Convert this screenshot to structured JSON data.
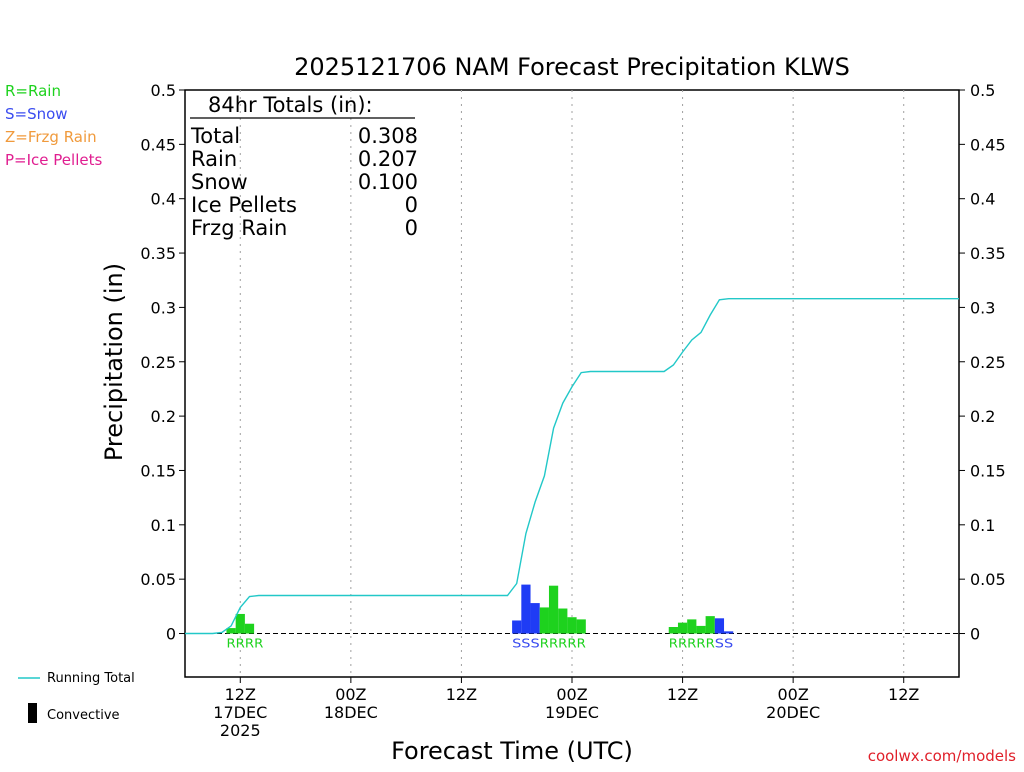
{
  "chart_data": {
    "type": "bar",
    "title": "2025121706 NAM Forecast Precipitation KLWS",
    "xlabel": "Forecast Time (UTC)",
    "ylabel": "Precipitation (in)",
    "ylim": [
      -0.04,
      0.5
    ],
    "y_ticks": [
      "0",
      "0.05",
      "0.1",
      "0.15",
      "0.2",
      "0.25",
      "0.3",
      "0.35",
      "0.4",
      "0.45",
      "0.5"
    ],
    "y_tick_values": [
      0,
      0.05,
      0.1,
      0.15,
      0.2,
      0.25,
      0.3,
      0.35,
      0.4,
      0.45,
      0.5
    ],
    "x_range_hours": [
      0,
      84
    ],
    "x_ticks": [
      {
        "hour": 6,
        "label1": "12Z",
        "label2": "17DEC",
        "label3": "2025"
      },
      {
        "hour": 18,
        "label1": "00Z",
        "label2": "18DEC",
        "label3": ""
      },
      {
        "hour": 30,
        "label1": "12Z",
        "label2": "",
        "label3": ""
      },
      {
        "hour": 42,
        "label1": "00Z",
        "label2": "19DEC",
        "label3": ""
      },
      {
        "hour": 54,
        "label1": "12Z",
        "label2": "",
        "label3": ""
      },
      {
        "hour": 66,
        "label1": "00Z",
        "label2": "20DEC",
        "label3": ""
      },
      {
        "hour": 78,
        "label1": "12Z",
        "label2": "",
        "label3": ""
      }
    ],
    "bar_width_hours": 1,
    "bars": [
      {
        "hour": 5,
        "value": 0.005,
        "type": "rain"
      },
      {
        "hour": 6,
        "value": 0.018,
        "type": "rain"
      },
      {
        "hour": 7,
        "value": 0.009,
        "type": "rain"
      },
      {
        "hour": 36,
        "value": 0.012,
        "type": "snow"
      },
      {
        "hour": 37,
        "value": 0.045,
        "type": "snow"
      },
      {
        "hour": 38,
        "value": 0.028,
        "type": "snow"
      },
      {
        "hour": 39,
        "value": 0.024,
        "type": "rain"
      },
      {
        "hour": 40,
        "value": 0.044,
        "type": "rain"
      },
      {
        "hour": 41,
        "value": 0.023,
        "type": "rain"
      },
      {
        "hour": 42,
        "value": 0.015,
        "type": "rain"
      },
      {
        "hour": 43,
        "value": 0.013,
        "type": "rain"
      },
      {
        "hour": 53,
        "value": 0.006,
        "type": "rain"
      },
      {
        "hour": 54,
        "value": 0.01,
        "type": "rain"
      },
      {
        "hour": 55,
        "value": 0.013,
        "type": "rain"
      },
      {
        "hour": 56,
        "value": 0.007,
        "type": "rain"
      },
      {
        "hour": 57,
        "value": 0.016,
        "type": "rain"
      },
      {
        "hour": 58,
        "value": 0.014,
        "type": "snow"
      },
      {
        "hour": 59,
        "value": 0.002,
        "type": "snow"
      }
    ],
    "precip_type_labels": [
      {
        "hour": 5,
        "text": "RRRR",
        "type": "rain"
      },
      {
        "hour": 36,
        "text": "SSS",
        "type": "snow"
      },
      {
        "hour": 39,
        "text": "RRRRR",
        "type": "rain"
      },
      {
        "hour": 53,
        "text": "RRRRR",
        "type": "rain"
      },
      {
        "hour": 58,
        "text": "SS",
        "type": "snow"
      }
    ],
    "running_total": {
      "x": [
        0,
        3,
        4,
        5,
        6,
        7,
        8,
        35,
        36,
        37,
        38,
        39,
        40,
        41,
        42,
        43,
        44,
        52,
        53,
        54,
        55,
        56,
        57,
        58,
        59,
        84
      ],
      "y": [
        0,
        0,
        0.001,
        0.007,
        0.024,
        0.034,
        0.035,
        0.035,
        0.046,
        0.092,
        0.121,
        0.145,
        0.189,
        0.212,
        0.227,
        0.24,
        0.241,
        0.241,
        0.247,
        0.259,
        0.27,
        0.277,
        0.293,
        0.307,
        0.308,
        0.308
      ]
    },
    "legend": [
      {
        "text": "R=Rain",
        "color": "#1ed21e"
      },
      {
        "text": "S=Snow",
        "color": "#3a4cf0"
      },
      {
        "text": "Z=Frzg Rain",
        "color": "#f09a3c"
      },
      {
        "text": "P=Ice Pellets",
        "color": "#e01e90"
      }
    ],
    "bottom_legend": [
      {
        "text": "Running Total",
        "kind": "line"
      },
      {
        "text": "Convective",
        "kind": "bar"
      }
    ],
    "totals_header": "84hr Totals (in):",
    "totals": [
      {
        "label": "Total",
        "value": "0.308"
      },
      {
        "label": "Rain",
        "value": "0.207"
      },
      {
        "label": "Snow",
        "value": "0.100"
      },
      {
        "label": "Ice Pellets",
        "value": "0"
      },
      {
        "label": "Frzg Rain",
        "value": "0"
      }
    ],
    "colors": {
      "rain": "#1ed21e",
      "snow": "#1f3cf5",
      "running_total": "#22c8c8",
      "grid": "#a0a0a0"
    },
    "credit": "coolwx.com/models"
  }
}
